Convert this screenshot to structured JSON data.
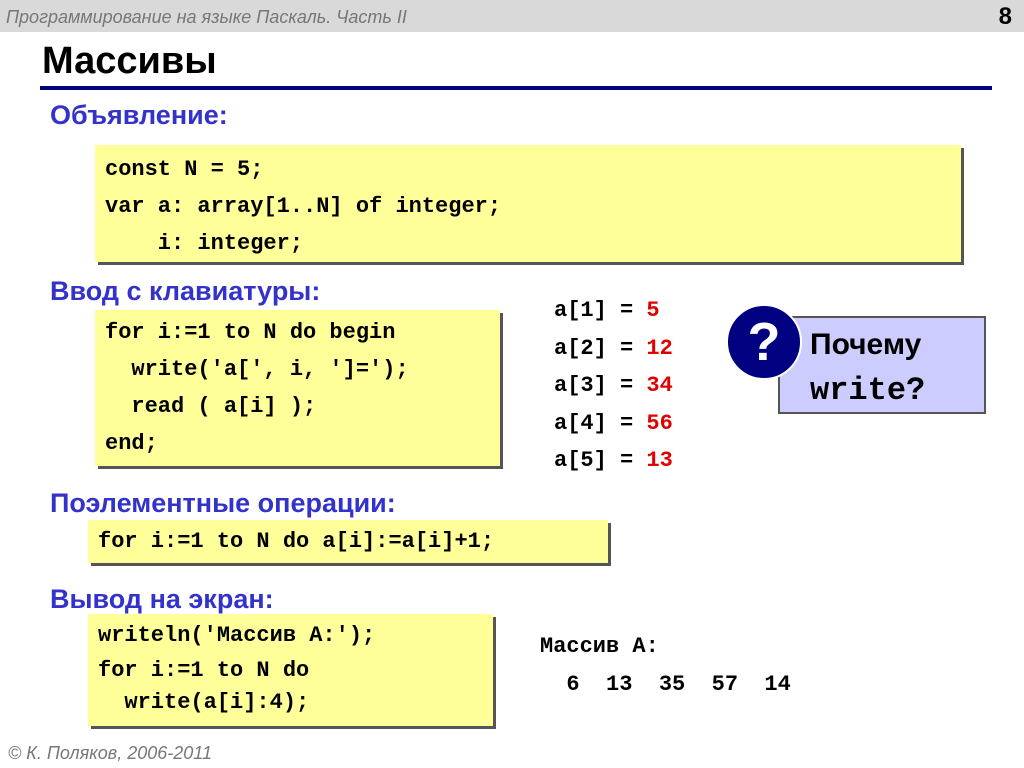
{
  "header": {
    "course": "Программирование на языке Паскаль. Часть II",
    "page": "8"
  },
  "title": "Массивы",
  "sections": {
    "declare": {
      "heading": "Объявление:",
      "code": [
        "const N = 5;",
        "var a: array[1..N] of integer;",
        "    i: integer;"
      ]
    },
    "input": {
      "heading": "Ввод с клавиатуры:",
      "code": [
        "for i:=1 to N do begin",
        "  write('a[', i, ']=');",
        "  read ( a[i] );",
        "end;"
      ]
    },
    "elementwise": {
      "heading": "Поэлементные операции:",
      "code": [
        "for i:=1 to N do a[i]:=a[i]+1;"
      ]
    },
    "output": {
      "heading": "Вывод на экран:",
      "code": [
        "writeln('Массив A:');",
        "for i:=1 to N do",
        "  write(a[i]:4);"
      ]
    }
  },
  "input_example": [
    {
      "label": "a[1] = ",
      "value": "5"
    },
    {
      "label": "a[2] = ",
      "value": "12"
    },
    {
      "label": "a[3] = ",
      "value": "34"
    },
    {
      "label": "a[4] = ",
      "value": "56"
    },
    {
      "label": "a[5] = ",
      "value": "13"
    }
  ],
  "output_example": {
    "line1": "Массив A:",
    "line2": "  6  13  35  57  14"
  },
  "question": {
    "icon": "question-icon",
    "symbol": "?",
    "line1": "Почему",
    "line2": "write?"
  },
  "footer": "© К. Поляков, 2006-2011",
  "colors": {
    "heading": "#3333cc",
    "code_bg": "#ffff99",
    "value": "#e00000",
    "callout_bg": "#ccccff",
    "rule": "#000080"
  }
}
